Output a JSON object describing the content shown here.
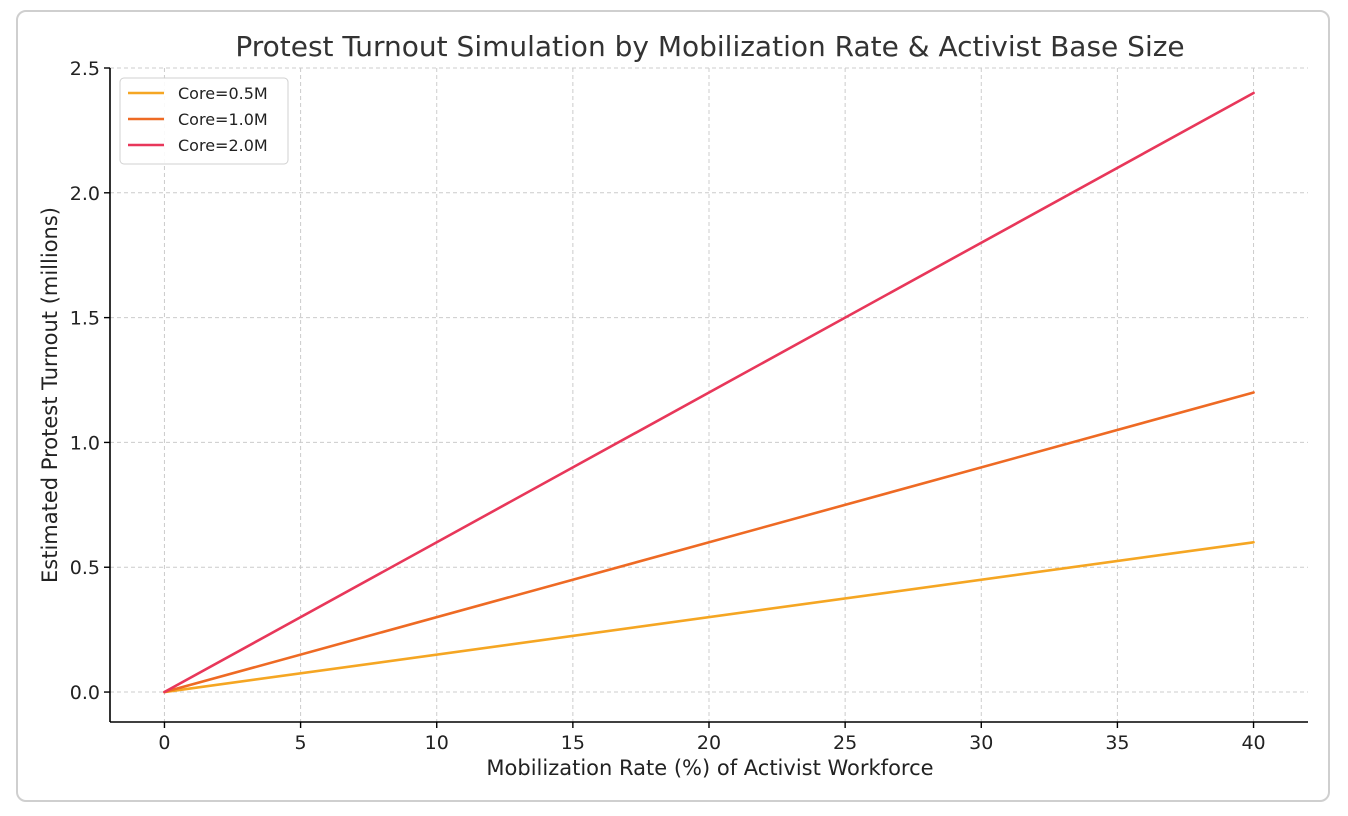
{
  "chart_data": {
    "type": "line",
    "title": "Protest Turnout Simulation by Mobilization Rate & Activist Base Size",
    "xlabel": "Mobilization Rate (%) of Activist Workforce",
    "ylabel": "Estimated Protest Turnout (millions)",
    "xlim": [
      -2,
      42
    ],
    "ylim": [
      -0.12,
      2.5
    ],
    "x_ticks": [
      0,
      5,
      10,
      15,
      20,
      25,
      30,
      35,
      40
    ],
    "x_tick_labels": [
      "0",
      "5",
      "10",
      "15",
      "20",
      "25",
      "30",
      "35",
      "40"
    ],
    "y_ticks": [
      0.0,
      0.5,
      1.0,
      1.5,
      2.0,
      2.5
    ],
    "y_tick_labels": [
      "0.0",
      "0.5",
      "1.0",
      "1.5",
      "2.0",
      "2.5"
    ],
    "grid": true,
    "legend_position": "top-left",
    "series": [
      {
        "name": "Core=0.5M",
        "color": "#f5a623",
        "x": [
          0,
          40
        ],
        "y": [
          0,
          0.6
        ]
      },
      {
        "name": "Core=1.0M",
        "color": "#ee6a24",
        "x": [
          0,
          40
        ],
        "y": [
          0,
          1.2
        ]
      },
      {
        "name": "Core=2.0M",
        "color": "#e8375a",
        "x": [
          0,
          40
        ],
        "y": [
          0,
          2.4
        ]
      }
    ]
  }
}
